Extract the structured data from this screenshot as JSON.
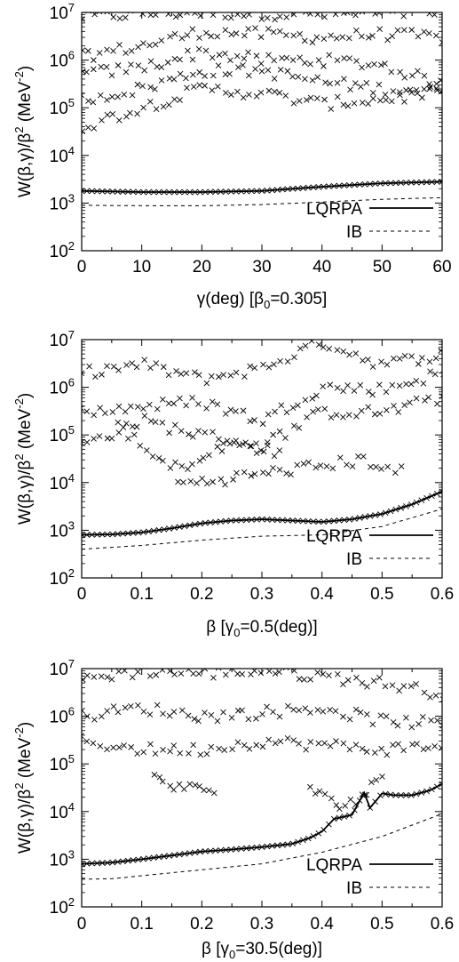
{
  "figure": {
    "panel_count": 3
  },
  "chart_data": [
    {
      "type": "scatter",
      "ylabel": "W(β,γ)/β² (MeV⁻²)",
      "xlabel": "γ(deg) [β₀=0.305]",
      "xlim": [
        0,
        60
      ],
      "ylim_log10": [
        2,
        7
      ],
      "xticks": [
        "0",
        "10",
        "20",
        "30",
        "40",
        "50",
        "60"
      ],
      "yticks": [
        "10²",
        "10³",
        "10⁴",
        "10⁵",
        "10⁶",
        "10⁷"
      ],
      "legend": {
        "position": "bottom-right",
        "entries": [
          "LQRPA",
          "IB"
        ]
      },
      "series": [
        {
          "name": "LQRPA",
          "style": "solid",
          "x": [
            0,
            10,
            20,
            30,
            40,
            50,
            60
          ],
          "y": [
            1800,
            1700,
            1700,
            1800,
            2200,
            2600,
            2800
          ]
        },
        {
          "name": "IB",
          "style": "dashed",
          "x": [
            0,
            10,
            20,
            30,
            40,
            50,
            60
          ],
          "y": [
            900,
            880,
            880,
            930,
            1050,
            1200,
            1300
          ]
        }
      ],
      "scatter_bands": [
        {
          "label": "",
          "x": [
            0,
            10,
            20,
            30,
            40,
            50,
            60
          ],
          "y": [
            8000000,
            9500000,
            10000000,
            9500000,
            9000000,
            9500000,
            10000000
          ]
        },
        {
          "label": "",
          "x": [
            0,
            10,
            20,
            30,
            40,
            50,
            60
          ],
          "y": [
            1200000,
            2000000,
            4000000,
            3500000,
            3000000,
            3500000,
            3000000
          ]
        },
        {
          "label": "",
          "x": [
            0,
            10,
            20,
            30,
            40,
            50,
            60
          ],
          "y": [
            500000,
            700000,
            1500000,
            1000000,
            1000000,
            800000,
            300000
          ]
        },
        {
          "label": "",
          "x": [
            0,
            10,
            20,
            30,
            40,
            50,
            60
          ],
          "y": [
            150000,
            250000,
            600000,
            600000,
            350000,
            250000,
            250000
          ]
        },
        {
          "label": "",
          "x": [
            0,
            10,
            20,
            30,
            40,
            50,
            60
          ],
          "y": [
            40000,
            100000,
            250000,
            200000,
            120000,
            150000,
            200000
          ]
        }
      ]
    },
    {
      "type": "scatter",
      "ylabel": "W(β,γ)/β² (MeV⁻²)",
      "xlabel": "β [γ₀=0.5(deg)]",
      "xlim": [
        0,
        0.6
      ],
      "ylim_log10": [
        2,
        7
      ],
      "xticks": [
        "0",
        "0.1",
        "0.2",
        "0.3",
        "0.4",
        "0.5",
        "0.6"
      ],
      "yticks": [
        "10²",
        "10³",
        "10⁴",
        "10⁵",
        "10⁶",
        "10⁷"
      ],
      "legend": {
        "position": "bottom-right",
        "entries": [
          "LQRPA",
          "IB"
        ]
      },
      "series": [
        {
          "name": "LQRPA",
          "style": "solid",
          "x": [
            0,
            0.05,
            0.1,
            0.15,
            0.2,
            0.25,
            0.3,
            0.35,
            0.4,
            0.45,
            0.5,
            0.55,
            0.6
          ],
          "y": [
            800,
            820,
            900,
            1100,
            1400,
            1600,
            1700,
            1600,
            1500,
            1700,
            2200,
            3500,
            6500
          ]
        },
        {
          "name": "IB",
          "style": "dashed",
          "x": [
            0,
            0.1,
            0.2,
            0.3,
            0.4,
            0.5,
            0.6
          ],
          "y": [
            400,
            480,
            620,
            750,
            800,
            1200,
            2800
          ]
        }
      ],
      "scatter_bands": [
        {
          "label": "",
          "x": [
            0,
            0.1,
            0.2,
            0.3,
            0.4,
            0.5,
            0.6
          ],
          "y": [
            2000000,
            3000000,
            1500000,
            2500000,
            9000000,
            3000000,
            5000000
          ]
        },
        {
          "label": "",
          "x": [
            0,
            0.1,
            0.2,
            0.3,
            0.4,
            0.5,
            0.6
          ],
          "y": [
            300000,
            400000,
            500000,
            200000,
            1000000,
            900000,
            2000000
          ]
        },
        {
          "label": "",
          "x": [
            0,
            0.1,
            0.2,
            0.3,
            0.4,
            0.5,
            0.6
          ],
          "y": [
            60000,
            200000,
            100000,
            60000,
            300000,
            300000,
            600000
          ]
        },
        {
          "label": "",
          "x": [
            0.06,
            0.1,
            0.15,
            0.2,
            0.25,
            0.3,
            0.33
          ],
          "y": [
            200000,
            50000,
            20000,
            30000,
            70000,
            50000,
            40000
          ]
        },
        {
          "label": "",
          "x": [
            0.16,
            0.17,
            0.18,
            0.19,
            0.47,
            0.49,
            0.51,
            0.53
          ],
          "y": [
            10000,
            10000,
            10000,
            10000,
            30000,
            25000,
            20000,
            17000
          ]
        }
      ]
    },
    {
      "type": "scatter",
      "ylabel": "W(β,γ)/β² (MeV⁻²)",
      "xlabel": "β [γ₀=30.5(deg)]",
      "xlim": [
        0,
        0.6
      ],
      "ylim_log10": [
        2,
        7
      ],
      "xticks": [
        "0",
        "0.1",
        "0.2",
        "0.3",
        "0.4",
        "0.5",
        "0.6"
      ],
      "yticks": [
        "10²",
        "10³",
        "10⁴",
        "10⁵",
        "10⁶",
        "10⁷"
      ],
      "legend": {
        "position": "bottom-right",
        "entries": [
          "LQRPA",
          "IB"
        ]
      },
      "series": [
        {
          "name": "LQRPA",
          "style": "solid",
          "x": [
            0,
            0.05,
            0.1,
            0.15,
            0.2,
            0.25,
            0.3,
            0.35,
            0.38,
            0.4,
            0.42,
            0.45,
            0.47,
            0.48,
            0.5,
            0.52,
            0.55,
            0.58,
            0.6
          ],
          "y": [
            800,
            850,
            1000,
            1200,
            1450,
            1600,
            1800,
            2100,
            2800,
            3800,
            7000,
            8500,
            25000,
            12000,
            24000,
            22000,
            22000,
            28000,
            38000
          ]
        },
        {
          "name": "IB",
          "style": "dashed",
          "x": [
            0,
            0.05,
            0.1,
            0.2,
            0.3,
            0.4,
            0.5,
            0.6
          ],
          "y": [
            380,
            390,
            450,
            600,
            800,
            1400,
            3000,
            9000
          ]
        }
      ],
      "scatter_bands": [
        {
          "label": "",
          "x": [
            0,
            0.1,
            0.2,
            0.3,
            0.4,
            0.5,
            0.6
          ],
          "y": [
            6000000,
            9000000,
            8000000,
            9000000,
            7000000,
            5000000,
            3000000
          ]
        },
        {
          "label": "",
          "x": [
            0,
            0.1,
            0.2,
            0.3,
            0.4,
            0.5,
            0.6
          ],
          "y": [
            1000000,
            1500000,
            1000000,
            1200000,
            1500000,
            800000,
            700000
          ]
        },
        {
          "label": "",
          "x": [
            0,
            0.1,
            0.2,
            0.3,
            0.4,
            0.5,
            0.6
          ],
          "y": [
            300000,
            200000,
            200000,
            300000,
            250000,
            200000,
            250000
          ]
        },
        {
          "label": "",
          "x": [
            0.12,
            0.14,
            0.16,
            0.18,
            0.2,
            0.22
          ],
          "y": [
            50000,
            40000,
            35000,
            30000,
            30000,
            28000
          ]
        },
        {
          "label": "",
          "x": [
            0.38,
            0.4,
            0.42,
            0.44,
            0.46,
            0.48,
            0.5
          ],
          "y": [
            30000,
            20000,
            15000,
            15000,
            18000,
            30000,
            60000
          ]
        }
      ]
    }
  ]
}
